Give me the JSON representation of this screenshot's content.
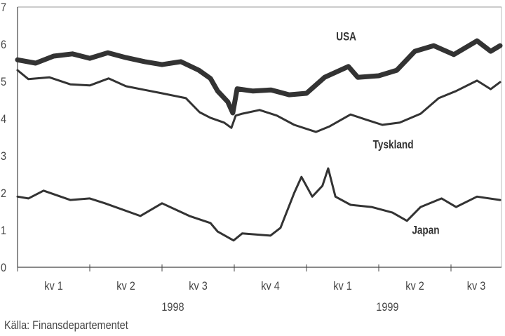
{
  "chart_data": {
    "type": "line",
    "title": "",
    "xlabel": "",
    "ylabel": "",
    "ylim": [
      0,
      7
    ],
    "yticks": [
      "0",
      "1",
      "2",
      "3",
      "4",
      "5",
      "6",
      "7"
    ],
    "xlim_quarters": [
      0,
      6.68
    ],
    "quarter_ticks": [
      0,
      1,
      2,
      3,
      4,
      5,
      6
    ],
    "xtick_labels": [
      {
        "label": "kv 1",
        "q": 0.5
      },
      {
        "label": "kv 2",
        "q": 1.5
      },
      {
        "label": "kv 3",
        "q": 2.5
      },
      {
        "label": "kv 4",
        "q": 3.5
      },
      {
        "label": "kv 1",
        "q": 4.5
      },
      {
        "label": "kv 2",
        "q": 5.5
      },
      {
        "label": "kv 3",
        "q": 6.35
      }
    ],
    "year_labels": [
      {
        "label": "1998",
        "q": 2.15
      },
      {
        "label": "1999",
        "q": 5.12
      }
    ],
    "grid": false,
    "series": [
      {
        "name": "USA",
        "label_pos": [
          4.55,
          6.1
        ],
        "weight": "thick",
        "x": [
          0,
          0.25,
          0.5,
          0.76,
          1.0,
          1.25,
          1.5,
          1.76,
          2.0,
          2.26,
          2.51,
          2.67,
          2.77,
          2.91,
          2.98,
          3.04,
          3.26,
          3.51,
          3.76,
          4.0,
          4.25,
          4.58,
          4.71,
          5.0,
          5.25,
          5.5,
          5.76,
          6.04,
          6.36,
          6.55,
          6.68
        ],
        "y": [
          5.58,
          5.49,
          5.68,
          5.74,
          5.62,
          5.77,
          5.64,
          5.53,
          5.45,
          5.53,
          5.3,
          5.08,
          4.74,
          4.45,
          4.15,
          4.8,
          4.74,
          4.77,
          4.64,
          4.68,
          5.11,
          5.4,
          5.11,
          5.15,
          5.3,
          5.81,
          5.96,
          5.72,
          6.09,
          5.81,
          5.96
        ]
      },
      {
        "name": "Tyskland",
        "label_pos": [
          5.2,
          3.2
        ],
        "weight": "thin",
        "x": [
          0,
          0.15,
          0.44,
          0.73,
          1.0,
          1.26,
          1.5,
          1.76,
          2.0,
          2.33,
          2.52,
          2.67,
          2.86,
          2.96,
          3.02,
          3.11,
          3.35,
          3.59,
          3.83,
          4.13,
          4.32,
          4.61,
          4.81,
          5.05,
          5.29,
          5.58,
          5.83,
          6.07,
          6.36,
          6.55,
          6.68
        ],
        "y": [
          5.3,
          5.06,
          5.11,
          4.92,
          4.89,
          5.08,
          4.87,
          4.77,
          4.68,
          4.55,
          4.17,
          4.02,
          3.89,
          3.75,
          4.08,
          4.13,
          4.23,
          4.08,
          3.83,
          3.64,
          3.79,
          4.11,
          3.98,
          3.83,
          3.89,
          4.13,
          4.55,
          4.74,
          5.02,
          4.79,
          4.98
        ]
      },
      {
        "name": "Japan",
        "label_pos": [
          5.65,
          0.9
        ],
        "weight": "thin",
        "x": [
          0,
          0.15,
          0.36,
          0.73,
          1.0,
          1.21,
          1.7,
          2.0,
          2.38,
          2.67,
          2.77,
          2.99,
          3.11,
          3.5,
          3.64,
          3.83,
          3.93,
          4.08,
          4.22,
          4.3,
          4.4,
          4.61,
          4.9,
          5.19,
          5.39,
          5.58,
          5.87,
          6.07,
          6.36,
          6.68
        ],
        "y": [
          1.9,
          1.85,
          2.06,
          1.81,
          1.85,
          1.72,
          1.38,
          1.72,
          1.38,
          1.19,
          0.96,
          0.72,
          0.91,
          0.85,
          1.06,
          2.0,
          2.43,
          1.9,
          2.19,
          2.66,
          1.9,
          1.68,
          1.62,
          1.47,
          1.25,
          1.62,
          1.85,
          1.62,
          1.9,
          1.81
        ]
      }
    ],
    "source": "Källa: Finansdepartementet"
  }
}
